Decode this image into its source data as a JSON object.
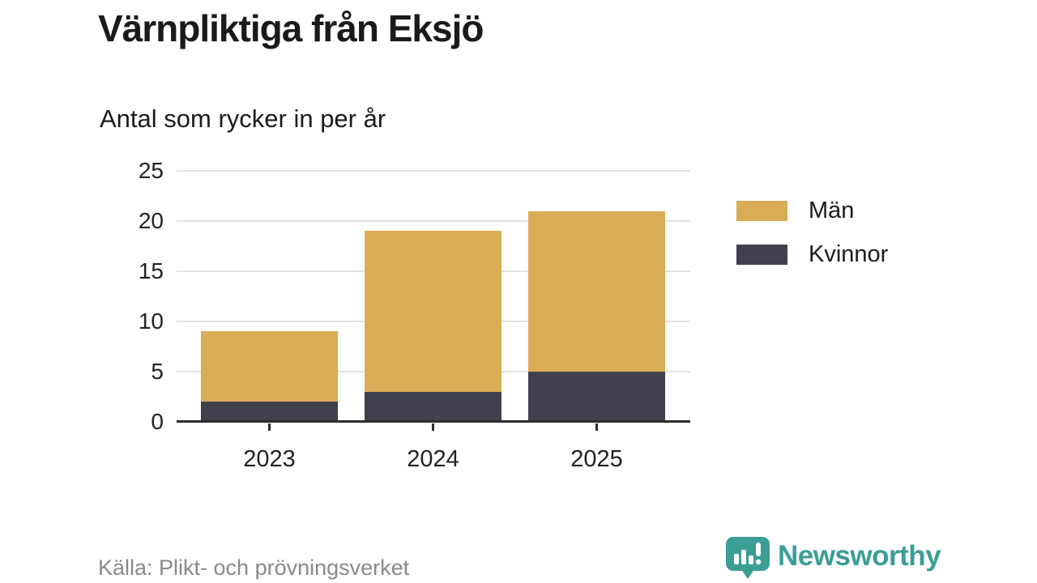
{
  "header": {
    "title": "Värnpliktiga från Eksjö",
    "subtitle": "Antal som rycker in per år"
  },
  "chart_data": {
    "type": "bar",
    "stacked": true,
    "title": "Värnpliktiga från Eksjö",
    "subtitle": "Antal som rycker in per år",
    "categories": [
      "2023",
      "2024",
      "2025"
    ],
    "series": [
      {
        "name": "Kvinnor",
        "color": "#41414d",
        "values": [
          2,
          3,
          5
        ]
      },
      {
        "name": "Män",
        "color": "#d9ac56",
        "values": [
          7,
          16,
          16
        ]
      }
    ],
    "stack_totals": [
      9,
      19,
      21
    ],
    "ylim": [
      0,
      25
    ],
    "yticks": [
      0,
      5,
      10,
      15,
      20,
      25
    ],
    "grid": "horizontal",
    "legend_position": "right",
    "legend_order": [
      "Män",
      "Kvinnor"
    ]
  },
  "footer": {
    "source": "Källa: Plikt- och prövningsverket",
    "brand_name": "Newsworthy"
  },
  "colors": {
    "men": "#d9ac56",
    "women": "#41414d",
    "brand_teal": "#3b9e95",
    "grid": "#e2e2e2",
    "axis": "#2e2e2e",
    "text": "#1a1a1a",
    "muted": "#8a8a8a"
  }
}
